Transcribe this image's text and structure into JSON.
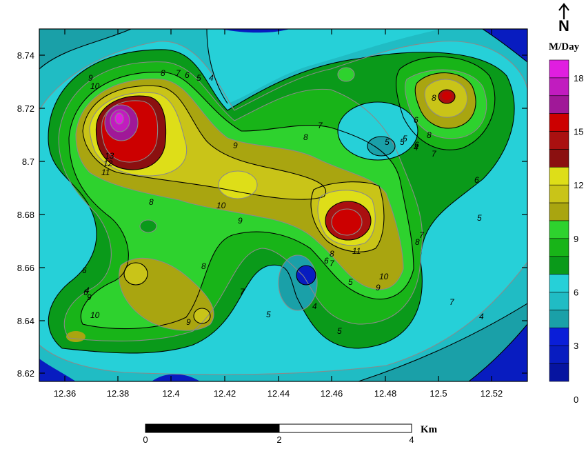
{
  "map": {
    "unit_title": "M/Day",
    "north_label": "N",
    "x_ticks": [
      "12.36",
      "12.38",
      "12.4",
      "12.42",
      "12.44",
      "12.46",
      "12.48",
      "12.5",
      "12.52"
    ],
    "y_ticks": [
      "8.74",
      "8.72",
      "8.7",
      "8.68",
      "8.66",
      "8.64",
      "8.62"
    ],
    "colorbar_labels": [
      "18",
      "15",
      "12",
      "9",
      "6",
      "3",
      "0"
    ],
    "colorbar_colors": [
      "#e01ee0",
      "#c11cbf",
      "#a01898",
      "#cc0000",
      "#aa1010",
      "#8b1010",
      "#dede18",
      "#c9c418",
      "#a9a510",
      "#2ed22e",
      "#18b418",
      "#0a9a1a",
      "#26d0d8",
      "#20bcc4",
      "#1aa0a8",
      "#0a1ed8",
      "#081cc0",
      "#0614a0"
    ],
    "contour_labels": [
      "9",
      "10",
      "13",
      "12",
      "11",
      "8",
      "7",
      "6",
      "5",
      "4",
      "9",
      "10",
      "9",
      "8",
      "8",
      "7",
      "5",
      "6",
      "4",
      "10",
      "9",
      "8",
      "7",
      "6",
      "5",
      "5",
      "6",
      "7",
      "8",
      "11",
      "10",
      "9",
      "8",
      "7",
      "6",
      "5",
      "4",
      "8",
      "7",
      "6",
      "5",
      "4",
      "5",
      "9",
      "6",
      "5",
      "4",
      "7",
      "8"
    ],
    "scale_labels": [
      "0",
      "2",
      "4"
    ],
    "scale_unit": "Km"
  },
  "chart_data": {
    "type": "contour",
    "title": "",
    "xlabel": "",
    "ylabel": "",
    "xlim": [
      12.35,
      12.535
    ],
    "ylim": [
      8.617,
      8.75
    ],
    "colorbar": {
      "title": "M/Day",
      "min": 0,
      "max": 19,
      "ticks": [
        0,
        3,
        6,
        9,
        12,
        15,
        18
      ]
    },
    "contour_levels_labeled": [
      4,
      5,
      6,
      7,
      8,
      9,
      10,
      11,
      12,
      13
    ],
    "highs": [
      {
        "x": 12.38,
        "y": 8.715,
        "value": 18
      },
      {
        "x": 12.467,
        "y": 8.676,
        "value": 13
      },
      {
        "x": 12.503,
        "y": 8.725,
        "value": 14
      },
      {
        "x": 12.424,
        "y": 8.692,
        "value": 11
      },
      {
        "x": 12.388,
        "y": 8.659,
        "value": 10
      },
      {
        "x": 12.412,
        "y": 8.641,
        "value": 10
      }
    ],
    "lows": [
      {
        "x": 12.45,
        "y": 8.656,
        "value": 2
      },
      {
        "x": 12.475,
        "y": 8.706,
        "value": 4
      }
    ]
  }
}
